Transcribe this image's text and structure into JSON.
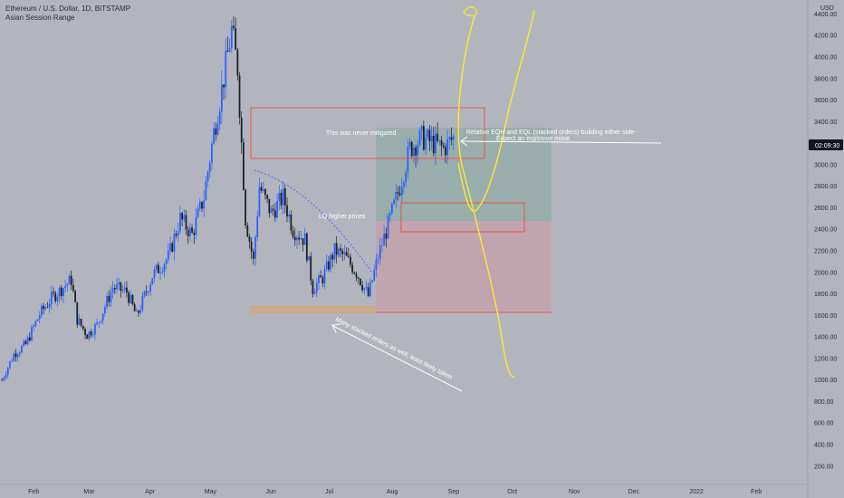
{
  "header": {
    "title": "Ethereum / U.S. Dollar, 1D, BITSTAMP",
    "indicator": "Asian Session Range"
  },
  "price_axis": {
    "currency": "USD",
    "countdown": "02:09:30"
  },
  "colors": {
    "background": "#b2b5be",
    "candle_up": "#2962ff",
    "candle_down": "#1e222d",
    "zone_green": "#5b9c7f",
    "zone_red": "#d98c94",
    "box_red": "#ff3b30",
    "box_orange": "#ff9800",
    "drawing_yellow": "#ffe733",
    "annotation": "#ffffff",
    "trendline_blue": "#3d5afe"
  },
  "annotations": {
    "never_mitigated": "This was never mitigated",
    "eqh_eql_1": "Relative EQH and EQL (stacked orders)-building either side-",
    "eqh_eql_2": "Expect an explosive move",
    "lq_higher": "LQ higher prices",
    "stacked_orders": "Many stacked orders as well, least likely taken"
  },
  "chart_data": {
    "type": "candlestick",
    "symbol": "Ethereum / U.S. Dollar, 1D, BITSTAMP",
    "y_label": "USD",
    "y_ticks": [
      200,
      400,
      600,
      800,
      1000,
      1200,
      1400,
      1600,
      1800,
      2000,
      2200,
      2400,
      2600,
      2800,
      3000,
      3200,
      3400,
      3600,
      3800,
      4000,
      4200,
      4400
    ],
    "y_tick_labels": [
      "200.00",
      "400.00",
      "600.00",
      "800.00",
      "1000.00",
      "1200.00",
      "1400.00",
      "1600.00",
      "1800.00",
      "2000.00",
      "2200.00",
      "2400.00",
      "2600.00",
      "2800.00",
      "3000.00",
      "3200.00",
      "3400.00",
      "3600.00",
      "3800.00",
      "4000.00",
      "4200.00",
      "4400.00"
    ],
    "ylim": [
      30,
      4530
    ],
    "x_ticks": [
      "Feb",
      "Mar",
      "Apr",
      "May",
      "Jun",
      "Jul",
      "Aug",
      "Sep",
      "Oct",
      "Nov",
      "Dec",
      "2022",
      "Feb"
    ],
    "x_range": [
      "2021-01-15",
      "2022-02-27"
    ],
    "last_price_label": "3230",
    "close_price_path": [
      {
        "date": "2021-01-16",
        "close": 1000
      },
      {
        "date": "2021-01-22",
        "close": 1240
      },
      {
        "date": "2021-01-28",
        "close": 1330
      },
      {
        "date": "2021-02-04",
        "close": 1610
      },
      {
        "date": "2021-02-10",
        "close": 1760
      },
      {
        "date": "2021-02-20",
        "close": 1930
      },
      {
        "date": "2021-02-23",
        "close": 1560
      },
      {
        "date": "2021-02-28",
        "close": 1420
      },
      {
        "date": "2021-03-05",
        "close": 1510
      },
      {
        "date": "2021-03-13",
        "close": 1860
      },
      {
        "date": "2021-03-20",
        "close": 1820
      },
      {
        "date": "2021-03-25",
        "close": 1590
      },
      {
        "date": "2021-04-02",
        "close": 1970
      },
      {
        "date": "2021-04-10",
        "close": 2140
      },
      {
        "date": "2021-04-16",
        "close": 2500
      },
      {
        "date": "2021-04-22",
        "close": 2350
      },
      {
        "date": "2021-04-28",
        "close": 2700
      },
      {
        "date": "2021-05-03",
        "close": 3300
      },
      {
        "date": "2021-05-07",
        "close": 3700
      },
      {
        "date": "2021-05-12",
        "close": 4250
      },
      {
        "date": "2021-05-15",
        "close": 3900
      },
      {
        "date": "2021-05-19",
        "close": 2500
      },
      {
        "date": "2021-05-23",
        "close": 2100
      },
      {
        "date": "2021-05-26",
        "close": 2800
      },
      {
        "date": "2021-06-01",
        "close": 2550
      },
      {
        "date": "2021-06-07",
        "close": 2700
      },
      {
        "date": "2021-06-12",
        "close": 2400
      },
      {
        "date": "2021-06-18",
        "close": 2300
      },
      {
        "date": "2021-06-22",
        "close": 1850
      },
      {
        "date": "2021-06-27",
        "close": 1950
      },
      {
        "date": "2021-07-03",
        "close": 2200
      },
      {
        "date": "2021-07-08",
        "close": 2150
      },
      {
        "date": "2021-07-14",
        "close": 2000
      },
      {
        "date": "2021-07-20",
        "close": 1780
      },
      {
        "date": "2021-07-25",
        "close": 2150
      },
      {
        "date": "2021-07-31",
        "close": 2500
      },
      {
        "date": "2021-08-05",
        "close": 2800
      },
      {
        "date": "2021-08-10",
        "close": 3150
      },
      {
        "date": "2021-08-16",
        "close": 3250
      },
      {
        "date": "2021-08-22",
        "close": 3200
      },
      {
        "date": "2021-08-27",
        "close": 3150
      },
      {
        "date": "2021-09-01",
        "close": 3250
      }
    ]
  }
}
